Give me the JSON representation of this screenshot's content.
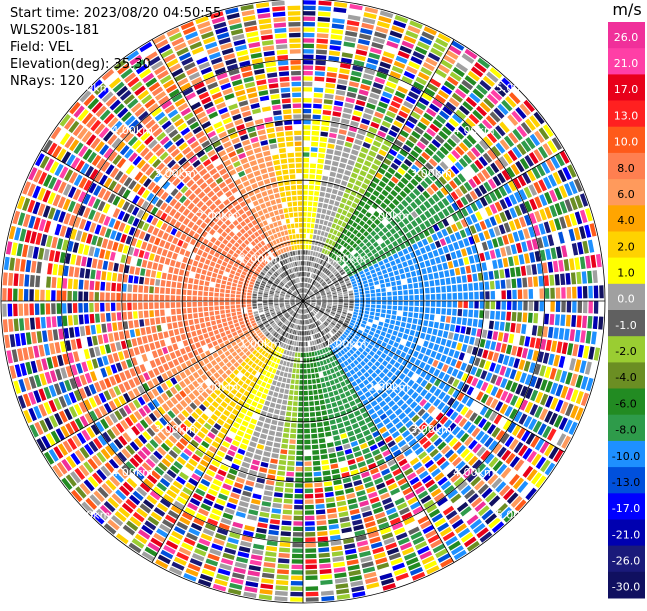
{
  "header": {
    "start_time": "Start time: 2023/08/20 04:50:55",
    "station": "WLS200s-181",
    "field": "Field: VEL",
    "elevation": "Elevation(deg): 35.30",
    "nrays": "NRays: 120"
  },
  "chart_data": {
    "type": "ppi_polar",
    "field": "VEL",
    "n_rays": 120,
    "range_rings_km": [
      1.0,
      2.0,
      3.0,
      4.0,
      5.0
    ],
    "range_labels": [
      "1.00km",
      "2.00km",
      "3.00km",
      "4.00km",
      "5.00km"
    ],
    "max_range_km": 5.0,
    "unit": "m/s",
    "colorbar": {
      "ticks": [
        "26.0",
        "21.0",
        "17.0",
        "13.0",
        "10.0",
        "8.0",
        "6.0",
        "4.0",
        "2.0",
        "1.0",
        "0.0",
        "-1.0",
        "-2.0",
        "-4.0",
        "-6.0",
        "-8.0",
        "-10.0",
        "-13.0",
        "-17.0",
        "-21.0",
        "-26.0",
        "-30.0"
      ],
      "colors": [
        "#f0309a",
        "#ff3fa6",
        "#e8001a",
        "#ff2020",
        "#ff5a1a",
        "#ff7f50",
        "#ff9a5c",
        "#ffa500",
        "#ffd200",
        "#ffff00",
        "#a0a0a0",
        "#606060",
        "#9acd32",
        "#6b8e23",
        "#228b22",
        "#2e9b4a",
        "#1e90ff",
        "#0050dc",
        "#0000ff",
        "#0000b0",
        "#1a1a7a",
        "#101060"
      ]
    }
  }
}
